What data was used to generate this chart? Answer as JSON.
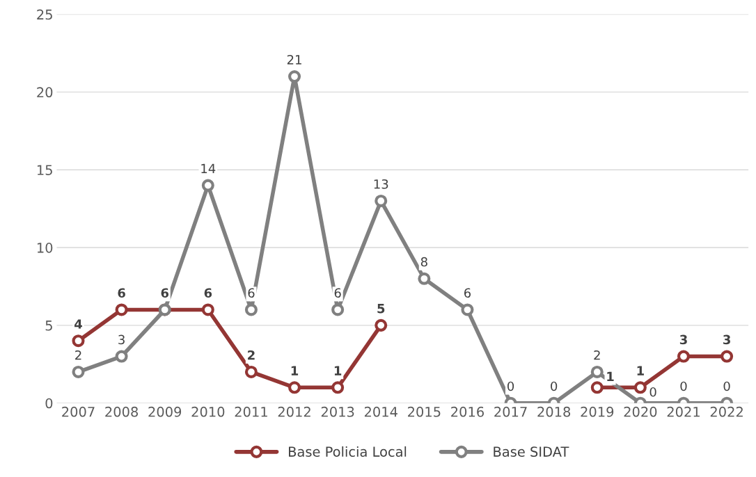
{
  "chart_data": {
    "type": "line",
    "categories": [
      "2007",
      "2008",
      "2009",
      "2010",
      "2011",
      "2012",
      "2013",
      "2014",
      "2015",
      "2016",
      "2017",
      "2018",
      "2019",
      "2020",
      "2021",
      "2022"
    ],
    "series": [
      {
        "name": "Base Policia Local",
        "color": "#943634",
        "values": [
          4,
          6,
          6,
          6,
          2,
          1,
          1,
          5,
          null,
          null,
          null,
          null,
          1,
          1,
          3,
          3
        ],
        "value_labels": [
          "4",
          "6",
          "6",
          "6",
          "2",
          "1",
          "1",
          "5",
          null,
          null,
          null,
          null,
          "1",
          "1",
          "3",
          "3"
        ]
      },
      {
        "name": "Base SIDAT",
        "color": "#808080",
        "values": [
          2,
          3,
          6,
          14,
          6,
          21,
          6,
          13,
          8,
          6,
          0,
          0,
          2,
          0,
          0,
          0
        ],
        "value_labels": [
          "2",
          "3",
          null,
          "14",
          "6",
          "21",
          "6",
          "13",
          "8",
          "6",
          "0",
          "0",
          "2",
          "0",
          "0",
          "0"
        ]
      }
    ],
    "ylim": [
      0,
      25
    ],
    "yticks": [
      0,
      5,
      10,
      15,
      20,
      25
    ],
    "grid": "y",
    "legend": "bottom",
    "marker": "circle",
    "line_style": "solid"
  }
}
